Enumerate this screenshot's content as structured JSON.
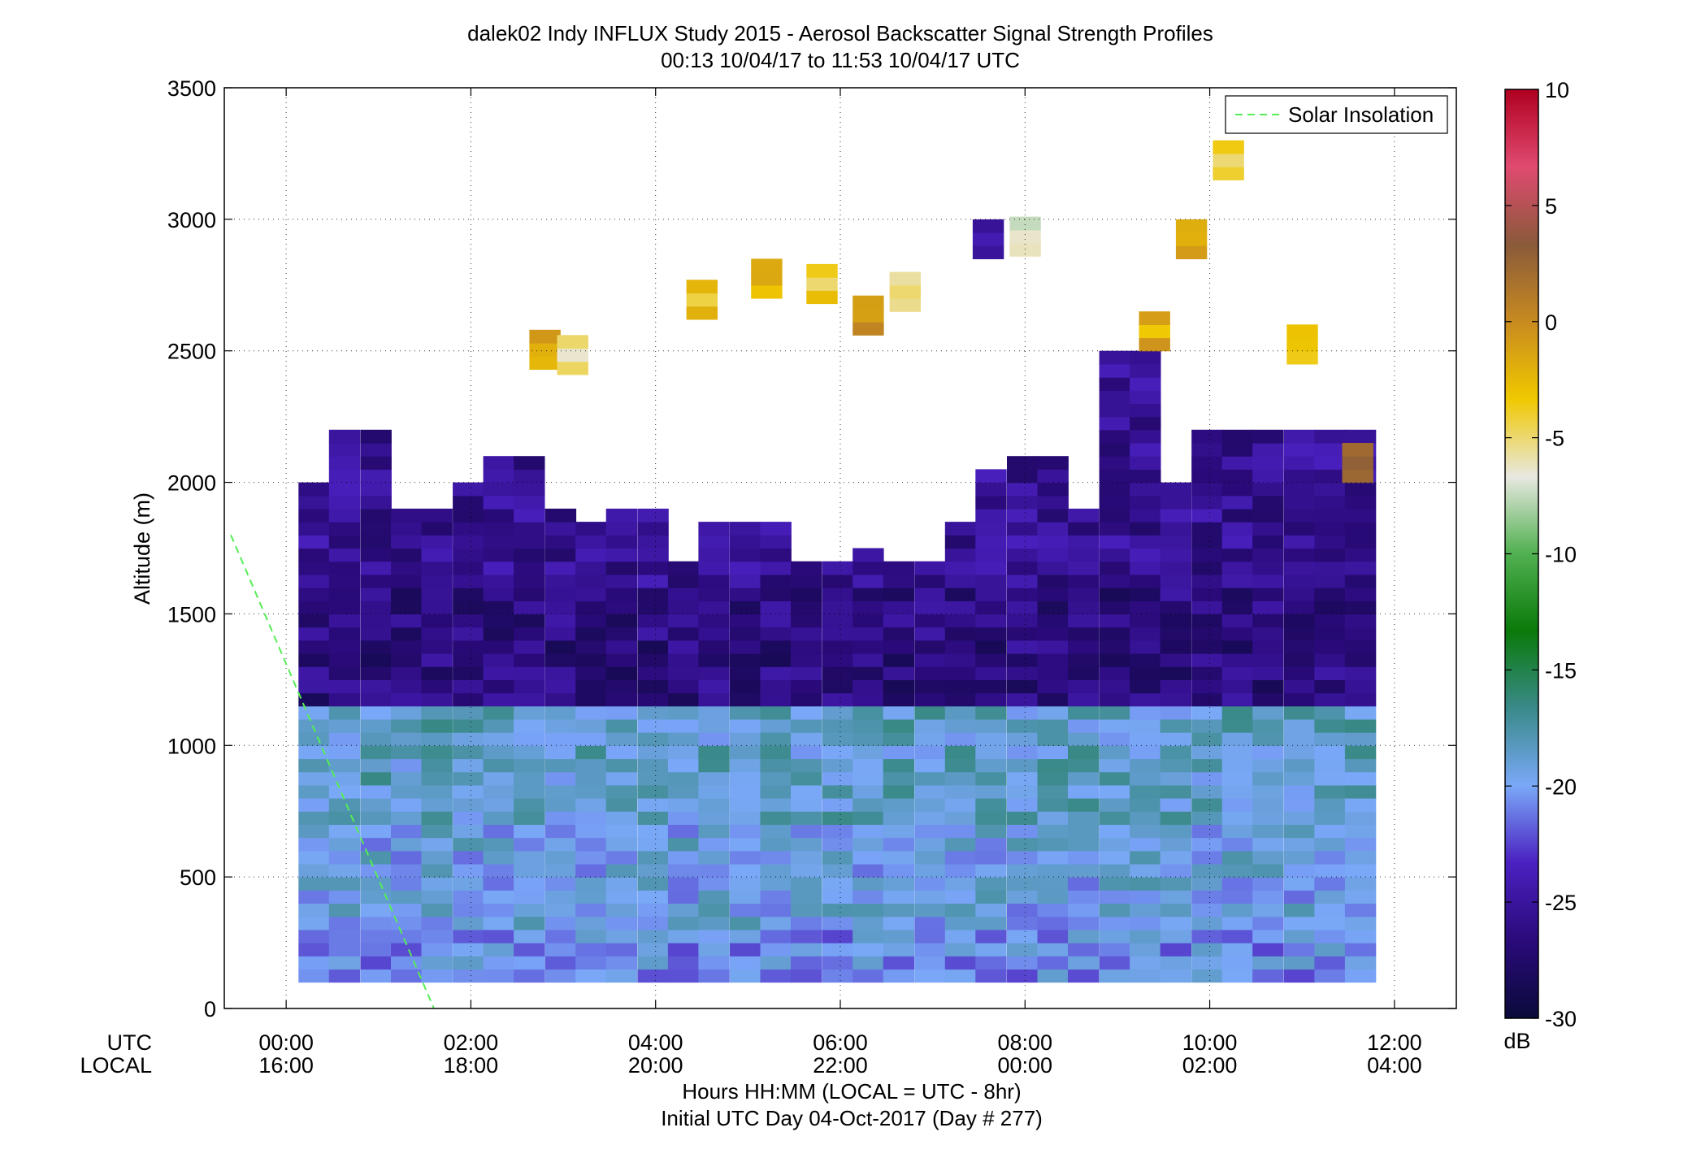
{
  "chart_data": {
    "type": "heatmap",
    "title": "dalek02 Indy INFLUX Study 2015 - Aerosol Backscatter Signal Strength Profiles",
    "subtitle": "00:13 10/04/17 to 11:53 10/04/17  UTC",
    "ylabel": "Altitude (m)",
    "xlabel": "Hours HH:MM  (LOCAL = UTC - 8hr)",
    "xlabel2": "Initial UTC Day 04-Oct-2017 (Day # 277)",
    "utc_row_label": "UTC",
    "local_row_label": "LOCAL",
    "colorbar_unit": "dB",
    "xlim_hours": [
      -0.67,
      12.67
    ],
    "ylim": [
      0,
      3500
    ],
    "x_ticks": [
      {
        "value": 0,
        "utc": "00:00",
        "local": "16:00"
      },
      {
        "value": 2,
        "utc": "02:00",
        "local": "18:00"
      },
      {
        "value": 4,
        "utc": "04:00",
        "local": "20:00"
      },
      {
        "value": 6,
        "utc": "06:00",
        "local": "22:00"
      },
      {
        "value": 8,
        "utc": "08:00",
        "local": "00:00"
      },
      {
        "value": 10,
        "utc": "10:00",
        "local": "02:00"
      },
      {
        "value": 12,
        "utc": "12:00",
        "local": "04:00"
      }
    ],
    "y_ticks": [
      0,
      500,
      1000,
      1500,
      2000,
      2500,
      3000,
      3500
    ],
    "y_tick_labels": [
      "0",
      "500",
      "1000",
      "1500",
      "2000",
      "2500",
      "3000",
      "3500"
    ],
    "clim": [
      -30,
      10
    ],
    "colorbar_ticks": [
      -30,
      -25,
      -20,
      -15,
      -10,
      -5,
      0,
      5,
      10
    ],
    "colorbar_tick_labels": [
      "-30",
      "-25",
      "-20",
      "-15",
      "-10",
      "-5",
      "0",
      "5",
      "10"
    ],
    "grid": true,
    "legend_position": "top-right",
    "legend_entries": [
      {
        "name": "Solar Insolation",
        "color": "#55ee55",
        "style": "dashed"
      }
    ],
    "solar_insolation_line": {
      "x": [
        -0.6,
        1.6
      ],
      "y": [
        1800,
        0
      ]
    },
    "column_times_hours": [
      0.3,
      0.63,
      0.97,
      1.3,
      1.63,
      1.97,
      2.3,
      2.63,
      2.97,
      3.3,
      3.63,
      3.97,
      4.3,
      4.63,
      4.97,
      5.3,
      5.63,
      5.97,
      6.3,
      6.63,
      6.97,
      7.3,
      7.63,
      7.97,
      8.3,
      8.63,
      8.97,
      9.3,
      9.63,
      9.97,
      10.3,
      10.63,
      10.97,
      11.3,
      11.63
    ],
    "column_width_hours": 0.333,
    "row_height_m": 50,
    "profiles_top_m": [
      2000,
      2200,
      2200,
      1900,
      1900,
      2000,
      2100,
      2100,
      1900,
      1850,
      1900,
      1900,
      1700,
      1850,
      1850,
      1850,
      1700,
      1700,
      1750,
      1700,
      1700,
      1850,
      2050,
      2100,
      2100,
      1900,
      2500,
      2500,
      2000,
      2200,
      2200,
      2200,
      2200,
      2200,
      2200
    ],
    "layer_levels_db": [
      {
        "below_m": 300,
        "db": -20.5
      },
      {
        "below_m": 700,
        "db": -19.5
      },
      {
        "below_m": 1150,
        "db": -18.5
      },
      {
        "below_m": 1600,
        "db": -26.5
      },
      {
        "below_m": 2300,
        "db": -25.5
      }
    ],
    "aloft_patches": [
      {
        "t": 2.8,
        "alt_m": 2430,
        "db": -1
      },
      {
        "t": 3.1,
        "alt_m": 2410,
        "db": -5
      },
      {
        "t": 4.5,
        "alt_m": 2620,
        "db": -3
      },
      {
        "t": 5.2,
        "alt_m": 2700,
        "db": -2
      },
      {
        "t": 5.8,
        "alt_m": 2680,
        "db": -4
      },
      {
        "t": 6.3,
        "alt_m": 2560,
        "db": 0
      },
      {
        "t": 6.7,
        "alt_m": 2650,
        "db": -6
      },
      {
        "t": 7.6,
        "alt_m": 2850,
        "db": -25
      },
      {
        "t": 8.0,
        "alt_m": 2860,
        "db": -6
      },
      {
        "t": 9.4,
        "alt_m": 2500,
        "db": -2
      },
      {
        "t": 9.8,
        "alt_m": 2850,
        "db": -1
      },
      {
        "t": 10.2,
        "alt_m": 3150,
        "db": -4
      },
      {
        "t": 11.0,
        "alt_m": 2450,
        "db": -3
      },
      {
        "t": 11.6,
        "alt_m": 2000,
        "db": 3
      }
    ]
  },
  "colors": {
    "solar_line": "#55ee55",
    "colormap_stops": [
      "#0a0a3a",
      "#2a0a7a",
      "#4a20c0",
      "#7aa8f8",
      "#3a8a8a",
      "#0a7a0a",
      "#50b050",
      "#e8e8e0",
      "#f0c800",
      "#c88a20",
      "#8a5a3a",
      "#e04a70",
      "#b00020"
    ]
  }
}
